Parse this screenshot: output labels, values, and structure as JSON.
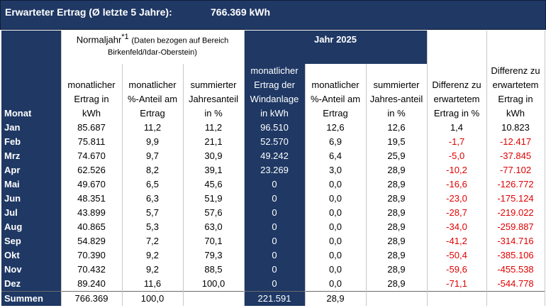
{
  "title": {
    "label": "Erwarteter Ertrag (Ø  letzte 5 Jahre):",
    "value": "766.369  kWh"
  },
  "groups": {
    "normaljahr_main": "Normaljahr",
    "normaljahr_sup": "*1",
    "normaljahr_note1": "(Daten bezogen auf Bereich",
    "normaljahr_note2": "Birkenfeld/Idar-Oberstein)",
    "jahr": "Jahr 2025"
  },
  "columns": {
    "monat": "Monat",
    "c1": "monatlicher Ertrag in kWh",
    "c2": "monatlicher %-Anteil am Ertrag",
    "c3": "summierter Jahresanteil in %",
    "c4": "monatlicher Ertrag der Windanlage in kWh",
    "c5": "monatlicher %-Anteil am Ertrag",
    "c6": "summierter Jahres-anteil in %",
    "c7": "Differenz zu erwartetem Ertrag in %",
    "c8": "Differenz zu erwartetem Ertrag in kWh"
  },
  "rows": [
    [
      "Jan",
      "85.687",
      "11,2",
      "11,2",
      "96.510",
      "12,6",
      "12,6",
      "1,4",
      "10.823"
    ],
    [
      "Feb",
      "75.811",
      "9,9",
      "21,1",
      "52.570",
      "6,9",
      "19,5",
      "-1,7",
      "-12.417"
    ],
    [
      "Mrz",
      "74.670",
      "9,7",
      "30,9",
      "49.242",
      "6,4",
      "25,9",
      "-5,0",
      "-37.845"
    ],
    [
      "Apr",
      "62.526",
      "8,2",
      "39,1",
      "23.269",
      "3,0",
      "28,9",
      "-10,2",
      "-77.102"
    ],
    [
      "Mai",
      "49.670",
      "6,5",
      "45,6",
      "0",
      "0,0",
      "28,9",
      "-16,6",
      "-126.772"
    ],
    [
      "Jun",
      "48.351",
      "6,3",
      "51,9",
      "0",
      "0,0",
      "28,9",
      "-23,0",
      "-175.124"
    ],
    [
      "Jul",
      "43.899",
      "5,7",
      "57,6",
      "0",
      "0,0",
      "28,9",
      "-28,7",
      "-219.022"
    ],
    [
      "Aug",
      "40.865",
      "5,3",
      "63,0",
      "0",
      "0,0",
      "28,9",
      "-34,0",
      "-259.887"
    ],
    [
      "Sep",
      "54.829",
      "7,2",
      "70,1",
      "0",
      "0,0",
      "28,9",
      "-41,2",
      "-314.716"
    ],
    [
      "Okt",
      "70.390",
      "9,2",
      "79,3",
      "0",
      "0,0",
      "28,9",
      "-50,4",
      "-385.106"
    ],
    [
      "Nov",
      "70.432",
      "9,2",
      "88,5",
      "0",
      "0,0",
      "28,9",
      "-59,6",
      "-455.538"
    ],
    [
      "Dez",
      "89.240",
      "11,6",
      "100,0",
      "0",
      "0,0",
      "28,9",
      "-71,1",
      "-544.778"
    ]
  ],
  "summen": {
    "label": "Summen",
    "c1": "766.369",
    "c2": "100,0",
    "c4": "221.591",
    "c5": "28,9"
  },
  "colors": {
    "navy": "#1f3864",
    "negative": "#e00000"
  }
}
